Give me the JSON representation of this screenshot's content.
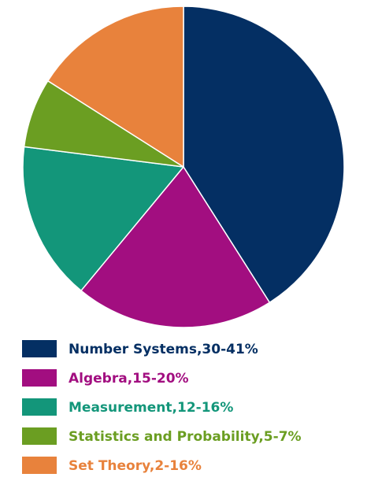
{
  "chart_data": {
    "type": "pie",
    "slices": [
      {
        "label": "Number Systems,30-41%",
        "value": 41,
        "color": "#042F63"
      },
      {
        "label": "Algebra,15-20%",
        "value": 20,
        "color": "#A20E80"
      },
      {
        "label": "Measurement,12-16%",
        "value": 16,
        "color": "#13967A"
      },
      {
        "label": "Statistics and Probability,5-7%",
        "value": 7,
        "color": "#6B9E22"
      },
      {
        "label": "Set Theory,2-16%",
        "value": 16,
        "color": "#E8823C"
      }
    ],
    "title": "",
    "legend_position": "bottom",
    "start_angle": "12 o'clock",
    "direction": "clockwise"
  }
}
